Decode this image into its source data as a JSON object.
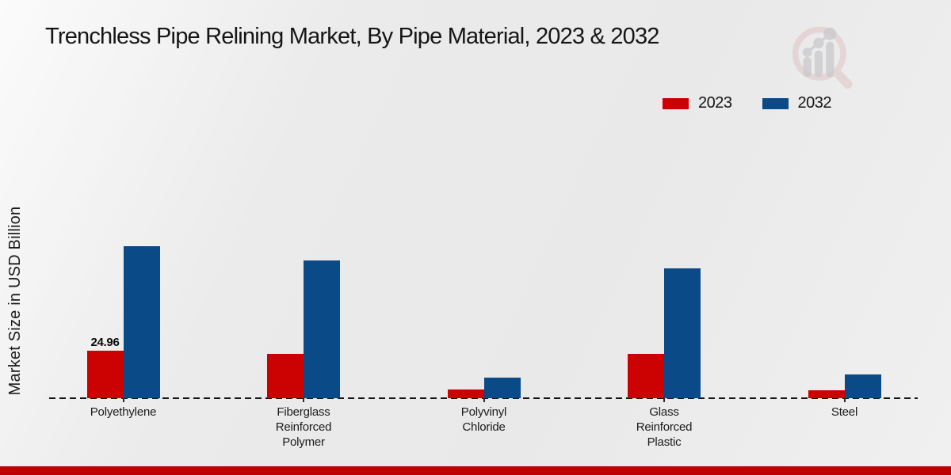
{
  "page": {
    "title": "Trenchless Pipe Relining Market, By Pipe Material, 2023 & 2032",
    "y_axis_label": "Market Size in USD Billion"
  },
  "legend": [
    {
      "label": "2023",
      "color": "#cc0101"
    },
    {
      "label": "2032",
      "color": "#0a4a87"
    }
  ],
  "chart_data": {
    "type": "bar",
    "title": "Trenchless Pipe Relining Market, By Pipe Material, 2023 & 2032",
    "xlabel": "",
    "ylabel": "Market Size in USD Billion",
    "categories": [
      "Polyethylene",
      "Fiberglass Reinforced Polymer",
      "Polyvinyl Chloride",
      "Glass Reinforced Plastic",
      "Steel"
    ],
    "category_label_lines": [
      [
        "Polyethylene"
      ],
      [
        "Fiberglass",
        "Reinforced",
        "Polymer"
      ],
      [
        "Polyvinyl",
        "Chloride"
      ],
      [
        "Glass",
        "Reinforced",
        "Plastic"
      ],
      [
        "Steel"
      ]
    ],
    "series": [
      {
        "name": "2023",
        "color": "#cc0101",
        "values": [
          24.96,
          23.5,
          4.6,
          23.5,
          4.2
        ]
      },
      {
        "name": "2032",
        "color": "#0a4a87",
        "values": [
          80.0,
          72.5,
          10.8,
          68.5,
          12.4
        ]
      }
    ],
    "data_labels": [
      {
        "series_index": 0,
        "category_index": 0,
        "text": "24.96"
      }
    ],
    "ylim": [
      0,
      85
    ],
    "grid": false,
    "axis_style": "dashed-baseline-only",
    "legend_position": "top-right"
  },
  "branding": {
    "logo_name": "magnifier-bar-chart-logo",
    "footer_color": "#c00000",
    "logo_ring_color": "#dcbabc",
    "logo_bar_color": "#c6c6ca"
  }
}
